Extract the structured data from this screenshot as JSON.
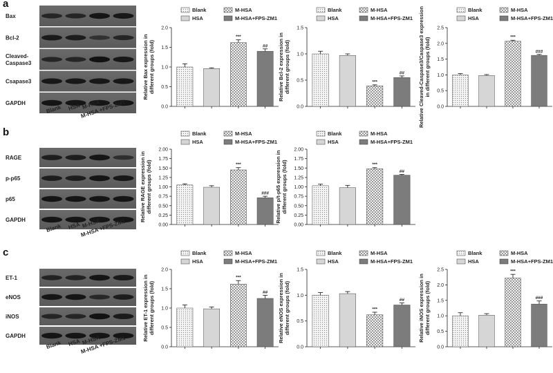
{
  "panels": [
    {
      "letter": "a",
      "blot": {
        "rows": [
          "Bax",
          "Bcl-2",
          "Cleaved-|Caspase3",
          "Csapase3",
          "GAPDH"
        ],
        "band_intensity": [
          [
            0.55,
            0.55,
            0.85,
            0.8
          ],
          [
            0.75,
            0.72,
            0.35,
            0.55
          ],
          [
            0.55,
            0.55,
            0.9,
            0.8
          ],
          [
            0.8,
            0.8,
            0.8,
            0.8
          ],
          [
            0.85,
            0.85,
            0.85,
            0.85
          ]
        ],
        "lanes": [
          "Blank",
          "HSA",
          "M-HSA",
          "M-HSA +FPS-ZM1"
        ]
      },
      "charts": [
        {
          "ylabel": "Relative Bax expression in|different groups (fold)",
          "ylim": [
            0,
            2.0
          ],
          "ticks": [
            "0.0",
            "0.5",
            "1.0",
            "1.5",
            "2.0"
          ],
          "values": [
            1.0,
            0.96,
            1.62,
            1.4
          ],
          "errors": [
            0.08,
            0.02,
            0.07,
            0.06
          ],
          "sig": [
            "",
            "",
            "***",
            "##"
          ]
        },
        {
          "ylabel": "Relative Bcl-2 expression in|different groups (fold)",
          "ylim": [
            0,
            1.5
          ],
          "ticks": [
            "0.0",
            "0.5",
            "1.0",
            "1.5"
          ],
          "values": [
            1.0,
            0.97,
            0.39,
            0.55
          ],
          "errors": [
            0.05,
            0.03,
            0.02,
            0.03
          ],
          "sig": [
            "",
            "",
            "***",
            "##"
          ]
        },
        {
          "ylabel": "Relative Cleaved-Caspase3/Caspase3 expression|in different groups (fold)",
          "ylim": [
            0,
            2.5
          ],
          "ticks": [
            "0.0",
            "0.5",
            "1.0",
            "1.5",
            "2.0",
            "2.5"
          ],
          "values": [
            1.0,
            0.98,
            2.07,
            1.62
          ],
          "errors": [
            0.04,
            0.03,
            0.03,
            0.03
          ],
          "sig": [
            "",
            "",
            "***",
            "###"
          ]
        }
      ]
    },
    {
      "letter": "b",
      "blot": {
        "rows": [
          "RAGE",
          "p-p65",
          "p65",
          "GAPDH"
        ],
        "band_intensity": [
          [
            0.7,
            0.7,
            0.85,
            0.4
          ],
          [
            0.7,
            0.7,
            0.85,
            0.8
          ],
          [
            0.85,
            0.85,
            0.85,
            0.85
          ],
          [
            0.85,
            0.85,
            0.85,
            0.85
          ]
        ],
        "lanes": [
          "Blank",
          "HSA",
          "M-HSA",
          "M-HSA +FPS-ZM1"
        ]
      },
      "charts": [
        {
          "ylabel": "Relative RAGE expression in|different groups (fold)",
          "ylim": [
            0,
            2.0
          ],
          "ticks": [
            "0.00",
            "0.25",
            "0.50",
            "0.75",
            "1.00",
            "1.25",
            "1.50",
            "1.75",
            "2.00"
          ],
          "values": [
            1.05,
            0.99,
            1.45,
            0.71
          ],
          "errors": [
            0.03,
            0.04,
            0.06,
            0.04
          ],
          "sig": [
            "",
            "",
            "***",
            "###"
          ]
        },
        {
          "ylabel": "Relative p/t-p65 expression in|different groups (fold)",
          "ylim": [
            0,
            2.0
          ],
          "ticks": [
            "0.00",
            "0.25",
            "0.50",
            "0.75",
            "1.00",
            "1.25",
            "1.50",
            "1.75",
            "2.00"
          ],
          "values": [
            1.03,
            0.98,
            1.48,
            1.31
          ],
          "errors": [
            0.04,
            0.06,
            0.03,
            0.02
          ],
          "sig": [
            "",
            "",
            "***",
            "##"
          ]
        }
      ]
    },
    {
      "letter": "c",
      "blot": {
        "rows": [
          "ET-1",
          "eNOS",
          "iNOS",
          "GAPDH"
        ],
        "band_intensity": [
          [
            0.6,
            0.6,
            0.85,
            0.75
          ],
          [
            0.85,
            0.85,
            0.5,
            0.7
          ],
          [
            0.55,
            0.55,
            0.9,
            0.75
          ],
          [
            0.85,
            0.85,
            0.85,
            0.85
          ]
        ],
        "lanes": [
          "Blank",
          "HSA",
          "M-HSA",
          "M-HSA +FPS-ZM1"
        ]
      },
      "charts": [
        {
          "ylabel": "Relative ET-1 expression in|different groups (fold)",
          "ylim": [
            0,
            2.0
          ],
          "ticks": [
            "0.0",
            "0.5",
            "1.0",
            "1.5",
            "2.0"
          ],
          "values": [
            1.0,
            0.98,
            1.62,
            1.25
          ],
          "errors": [
            0.08,
            0.05,
            0.09,
            0.08
          ],
          "sig": [
            "",
            "",
            "***",
            "##"
          ]
        },
        {
          "ylabel": "Relative eNOS expression in|different groups (fold)",
          "ylim": [
            0,
            1.5
          ],
          "ticks": [
            "0.0",
            "0.5",
            "1.0",
            "1.5"
          ],
          "values": [
            1.0,
            1.03,
            0.62,
            0.81
          ],
          "errors": [
            0.05,
            0.04,
            0.05,
            0.04
          ],
          "sig": [
            "",
            "",
            "***",
            "##"
          ]
        },
        {
          "ylabel": "Relative iNOS expression in|different groups (fold)",
          "ylim": [
            0,
            2.5
          ],
          "ticks": [
            "0.0",
            "0.5",
            "1.0",
            "1.5",
            "2.0",
            "2.5"
          ],
          "values": [
            1.0,
            1.02,
            2.22,
            1.38
          ],
          "errors": [
            0.1,
            0.05,
            0.12,
            0.1
          ],
          "sig": [
            "",
            "",
            "***",
            "###"
          ]
        }
      ]
    }
  ],
  "legend": [
    "Blank",
    "M-HSA",
    "HSA",
    "M-HSA+FPS-ZM1"
  ],
  "series_order": [
    "Blank",
    "HSA",
    "M-HSA",
    "M-HSA+FPS-ZM1"
  ],
  "bar_styles": {
    "Blank": {
      "fill": "#ececec",
      "pattern": "dots"
    },
    "HSA": {
      "fill": "#d6d6d6",
      "pattern": "none"
    },
    "M-HSA": {
      "fill": "#e8e8e8",
      "pattern": "check"
    },
    "M-HSA+FPS-ZM1": {
      "fill": "#7c7c7c",
      "pattern": "none"
    }
  },
  "chart_data": [
    {
      "type": "bar",
      "panel": "a",
      "categories": [
        "Blank",
        "HSA",
        "M-HSA",
        "M-HSA+FPS-ZM1"
      ],
      "values": [
        1.0,
        0.96,
        1.62,
        1.4
      ],
      "ylabel": "Relative Bax expression in different groups (fold)",
      "ylim": [
        0,
        2.0
      ]
    },
    {
      "type": "bar",
      "panel": "a",
      "categories": [
        "Blank",
        "HSA",
        "M-HSA",
        "M-HSA+FPS-ZM1"
      ],
      "values": [
        1.0,
        0.97,
        0.39,
        0.55
      ],
      "ylabel": "Relative Bcl-2 expression in different groups (fold)",
      "ylim": [
        0,
        1.5
      ]
    },
    {
      "type": "bar",
      "panel": "a",
      "categories": [
        "Blank",
        "HSA",
        "M-HSA",
        "M-HSA+FPS-ZM1"
      ],
      "values": [
        1.0,
        0.98,
        2.07,
        1.62
      ],
      "ylabel": "Relative Cleaved-Caspase3/Caspase3 expression in different groups (fold)",
      "ylim": [
        0,
        2.5
      ]
    },
    {
      "type": "bar",
      "panel": "b",
      "categories": [
        "Blank",
        "HSA",
        "M-HSA",
        "M-HSA+FPS-ZM1"
      ],
      "values": [
        1.05,
        0.99,
        1.45,
        0.71
      ],
      "ylabel": "Relative RAGE expression in different groups (fold)",
      "ylim": [
        0,
        2.0
      ]
    },
    {
      "type": "bar",
      "panel": "b",
      "categories": [
        "Blank",
        "HSA",
        "M-HSA",
        "M-HSA+FPS-ZM1"
      ],
      "values": [
        1.03,
        0.98,
        1.48,
        1.31
      ],
      "ylabel": "Relative p/t-p65 expression in different groups (fold)",
      "ylim": [
        0,
        2.0
      ]
    },
    {
      "type": "bar",
      "panel": "c",
      "categories": [
        "Blank",
        "HSA",
        "M-HSA",
        "M-HSA+FPS-ZM1"
      ],
      "values": [
        1.0,
        0.98,
        1.62,
        1.25
      ],
      "ylabel": "Relative ET-1 expression in different groups (fold)",
      "ylim": [
        0,
        2.0
      ]
    },
    {
      "type": "bar",
      "panel": "c",
      "categories": [
        "Blank",
        "HSA",
        "M-HSA",
        "M-HSA+FPS-ZM1"
      ],
      "values": [
        1.0,
        1.03,
        0.62,
        0.81
      ],
      "ylabel": "Relative eNOS expression in different groups (fold)",
      "ylim": [
        0,
        1.5
      ]
    },
    {
      "type": "bar",
      "panel": "c",
      "categories": [
        "Blank",
        "HSA",
        "M-HSA",
        "M-HSA+FPS-ZM1"
      ],
      "values": [
        1.0,
        1.02,
        2.22,
        1.38
      ],
      "ylabel": "Relative iNOS expression in different groups (fold)",
      "ylim": [
        0,
        2.5
      ]
    }
  ]
}
